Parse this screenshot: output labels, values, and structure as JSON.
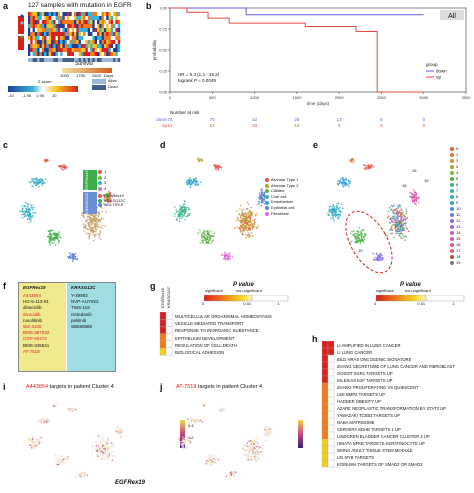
{
  "panels": {
    "a": {
      "label": "a",
      "title": "127 samples with mutation in EGFR",
      "survival_label": "Survival",
      "days_label": "Days",
      "days_ticks": [
        "1000",
        "1750",
        "2500"
      ],
      "zscore_label": "Z-score",
      "zscore_ticks": [
        "-10",
        "-1.95",
        "1.96",
        "10"
      ],
      "legend": [
        "Alive",
        "Dead"
      ],
      "colors": {
        "alive": "#9fb7d6",
        "dead": "#3f5f8a"
      }
    },
    "b": {
      "label": "b",
      "all_label": "All",
      "ylabel": "probability",
      "xlabel": "time (days)",
      "stats_line1": "HR = 5.3 (1.4 - 19.2)",
      "stats_line2": "logrank P = 0.0049",
      "legend_title": "group",
      "legend": [
        "down",
        "up"
      ],
      "risk_title": "Number at risk",
      "risk_rows": [
        {
          "group": "down",
          "values": [
            "75",
            "75",
            "42",
            "25",
            "13",
            "6",
            "0"
          ]
        },
        {
          "group": "up",
          "values": [
            "51",
            "51",
            "33",
            "10",
            "3",
            "0",
            "0"
          ]
        }
      ],
      "chart_data": {
        "type": "line",
        "xlabel": "time (days)",
        "ylabel": "probability",
        "xlim": [
          0,
          3500
        ],
        "ylim": [
          0,
          1
        ],
        "xticks": [
          "0",
          "500",
          "1000",
          "1500",
          "2000",
          "2500",
          "3000",
          "3500"
        ],
        "yticks": [
          "0.00",
          "0.25",
          "0.50",
          "0.75",
          "1.00"
        ],
        "series": [
          {
            "name": "down",
            "color": "#5b5fe0",
            "x": [
              0,
              900,
              900,
              3000
            ],
            "y": [
              1.0,
              1.0,
              0.92,
              0.92
            ]
          },
          {
            "name": "up",
            "color": "#e24b40",
            "x": [
              0,
              200,
              200,
              450,
              450,
              700,
              700,
              1600,
              1600,
              2200,
              2200,
              2450,
              2450,
              3000
            ],
            "y": [
              1.0,
              1.0,
              0.95,
              0.95,
              0.88,
              0.88,
              0.82,
              0.82,
              0.78,
              0.78,
              0.72,
              0.72,
              0.0,
              0.0
            ]
          }
        ]
      }
    },
    "c": {
      "label": "c",
      "cluster_legend": [
        "1",
        "2",
        "3",
        "4"
      ],
      "group_labels": [
        "EGFRex19",
        "KRASG12C"
      ],
      "mutation_legend": [
        "EGFRex19",
        "KRASG12C",
        "MULTIPLE"
      ]
    },
    "d": {
      "label": "d",
      "legend": [
        "Alveolar Type 1",
        "Alveolar Type 2",
        "Ciliated",
        "Club cell",
        "Endothelium",
        "Epithelial cell",
        "Fibroblast"
      ],
      "legend_colors": [
        "#e25b49",
        "#b3a33a",
        "#5fb04a",
        "#3db58f",
        "#32a8c9",
        "#5d7fd9",
        "#d66bd0"
      ]
    },
    "e": {
      "label": "e",
      "legend": [
        "0",
        "1",
        "2",
        "3",
        "4",
        "5",
        "6",
        "7",
        "8",
        "9",
        "10",
        "11",
        "12",
        "13",
        "14",
        "15",
        "16",
        "17",
        "18",
        "19"
      ],
      "marker_labels": [
        "19",
        "15",
        "18",
        "19"
      ]
    },
    "f": {
      "label": "f",
      "headers": [
        "EGFRex19",
        "KRASG12C"
      ],
      "egfr_drugs": [
        {
          "name": "A443654",
          "red": true
        },
        {
          "name": "HG-5-113-01",
          "red": false
        },
        {
          "name": "dinaciclib",
          "red": false
        },
        {
          "name": "alvocidib",
          "red": true
        },
        {
          "name": "ruxolitinib",
          "red": false
        },
        {
          "name": "WZ-3105",
          "red": true
        },
        {
          "name": "BMS-387032",
          "red": true
        },
        {
          "name": "CGP-60474",
          "red": true
        },
        {
          "name": "BMS-345541",
          "red": false
        },
        {
          "name": "AT-7519",
          "red": true
        }
      ],
      "kras_drugs": [
        "Y-39983",
        "NVP-AUY922",
        "TWS-119",
        "nintedanib",
        "pelitinib",
        "SB590885"
      ]
    },
    "g": {
      "label": "g",
      "col_labels": [
        "EGFRex19",
        "KRASG12C"
      ],
      "pvalue_title": "P value",
      "pvalue_legend": [
        "significant",
        "non-significant"
      ],
      "pvalue_ticks": [
        "0",
        "0.01",
        "1"
      ],
      "terms": [
        "MULTICELLULAR ORGANISMAL HOMEOSTASIS",
        "VESICLE MEDIATED TRANSPORT",
        "RESPONSE TO INORGANIC SUBSTANCE",
        "EPITHELIUM DEVELOPMENT",
        "REGULATION OF CELL DEATH",
        "BIOLOGICAL ADHESION"
      ]
    },
    "h": {
      "label": "h",
      "pvalue_title": "P value",
      "pvalue_legend": [
        "significant",
        "non-significant"
      ],
      "pvalue_ticks": [
        "0",
        "0.01",
        "1"
      ],
      "terms": [
        "LI AMPLIFIED IN LUNG CANCER",
        "LI LUNG CANCER",
        "BILD HRAS ONCOGENIC SIGNATURE",
        "ZHANG SECRETOME OF LUNG CANCER AND FIBROBLAST",
        "GOZGIT ESR1 TARGETS UP",
        "IGLESIAS E2F TARGETS UP",
        "ZHANG PROLIFERATING VS QUIESCENT",
        "LEE BMP2 TARGETS UP",
        "HADDER OBESITY UP",
        "AZARE NEOPLASTIC TRANSFORMATION BY STAT3 UP",
        "YAMAZAKI TCEB3 TARGETS UP",
        "NABA MATRISOME",
        "CERVERA SDHB TARGETS 1 UP",
        "LINDGREN BLADDER CANCER CLUSTER 3 UP",
        "HINATA NFKB TARGETS KERATINOCYTE UP",
        "WONG ADULT TISSUE STEM MODULE",
        "LEI MYB TARGETS",
        "KOINUMA TARGETS OF SMAD2 OR SMAD3"
      ]
    },
    "i": {
      "label": "i",
      "title_drug": "A443654",
      "title_rest": " targets in patient Cluster 4",
      "bottom_label": "EGFRex19",
      "scale_ticks": [
        "0.4",
        "0.2",
        "0.0"
      ]
    },
    "j": {
      "label": "j",
      "title_drug": "AT-7519",
      "title_rest": " targets in patient Cluster 4"
    }
  },
  "colors": {
    "red_text": "#d61f1f",
    "green_box": "#3cae49",
    "blue_box": "#6b8fd6",
    "cyan_box": "#9fdde3",
    "yellow_box": "#f0ea8e",
    "sig_red": "#d8201c",
    "sig_orange": "#f07a1e",
    "sig_yellow": "#f4d21c",
    "purple_low": "#3b1f7a"
  }
}
